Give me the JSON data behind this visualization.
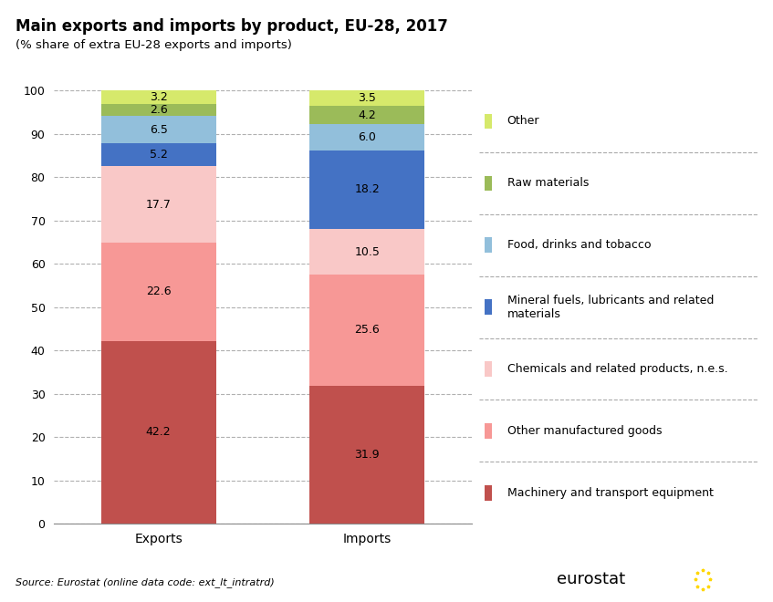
{
  "title": "Main exports and imports by product, EU-28, 2017",
  "subtitle": "(% share of extra EU-28 exports and imports)",
  "source": "Source: Eurostat (online data code: ext_lt_intratrd)",
  "categories": [
    "Exports",
    "Imports"
  ],
  "series": [
    {
      "name": "Machinery and transport equipment",
      "values": [
        42.2,
        31.9
      ],
      "color": "#c0504d"
    },
    {
      "name": "Other manufactured goods",
      "values": [
        22.6,
        25.6
      ],
      "color": "#f79896"
    },
    {
      "name": "Chemicals and related products, n.e.s.",
      "values": [
        17.7,
        10.5
      ],
      "color": "#f9c8c7"
    },
    {
      "name": "Mineral fuels, lubricants and related\nmaterials",
      "values": [
        5.2,
        18.2
      ],
      "color": "#4472c4"
    },
    {
      "name": "Food, drinks and tobacco",
      "values": [
        6.5,
        6.0
      ],
      "color": "#92bfdb"
    },
    {
      "name": "Raw materials",
      "values": [
        2.6,
        4.2
      ],
      "color": "#9bbb59"
    },
    {
      "name": "Other",
      "values": [
        3.2,
        3.5
      ],
      "color": "#d6e96b"
    }
  ],
  "ylim": [
    0,
    100
  ],
  "yticks": [
    0,
    10,
    20,
    30,
    40,
    50,
    60,
    70,
    80,
    90,
    100
  ],
  "bar_width": 0.55,
  "background_color": "#ffffff",
  "grid_color": "#b0b0b0",
  "title_fontsize": 12,
  "subtitle_fontsize": 9.5,
  "label_fontsize": 9,
  "legend_fontsize": 9,
  "source_fontsize": 8
}
